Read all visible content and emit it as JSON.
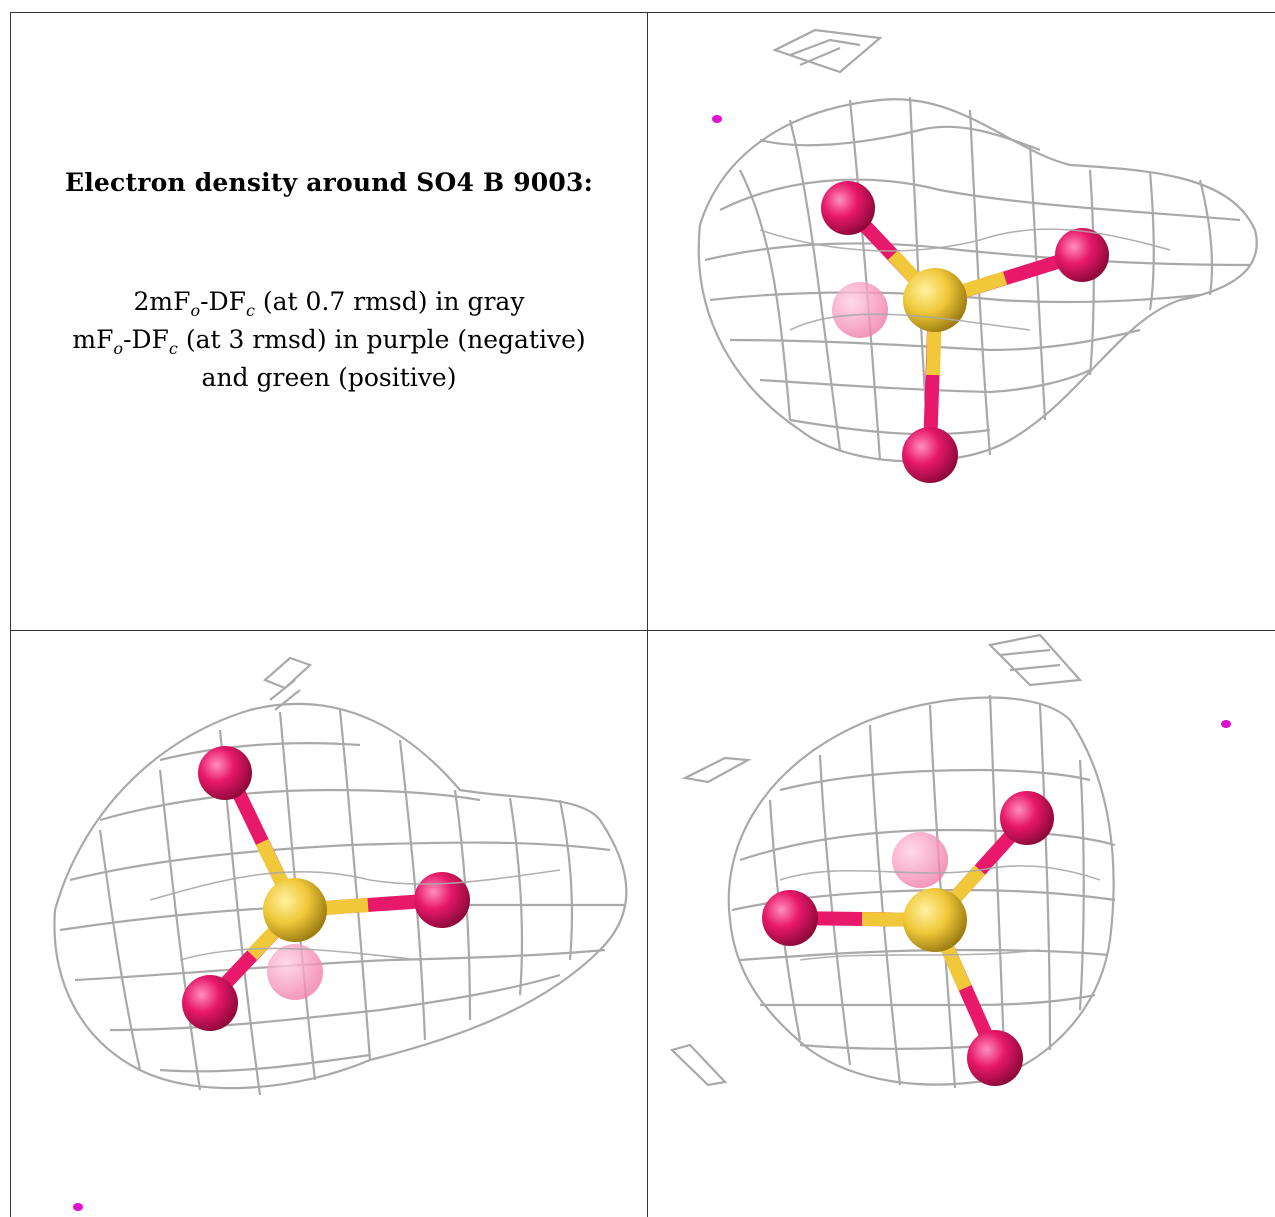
{
  "caption": {
    "title": "Electron density around SO4 B 9003:",
    "line1": {
      "a": "2mF",
      "b": "o",
      "c": "-DF",
      "d": "c",
      "e": " (at 0.7 rmsd) in gray"
    },
    "line2": {
      "a": "mF",
      "b": "o",
      "c": "-DF",
      "d": "c",
      "e": " (at 3 rmsd) in purple (negative)"
    },
    "line3": "and green (positive)"
  },
  "colors": {
    "mesh": "#a9a9a9",
    "oxygen": "#e8186a",
    "sulfur": "#f0c83a",
    "negative_density": "#e010d0",
    "grid": "#333333"
  },
  "panels": [
    {
      "name": "view-top-right"
    },
    {
      "name": "view-bottom-left"
    },
    {
      "name": "view-bottom-right"
    }
  ]
}
